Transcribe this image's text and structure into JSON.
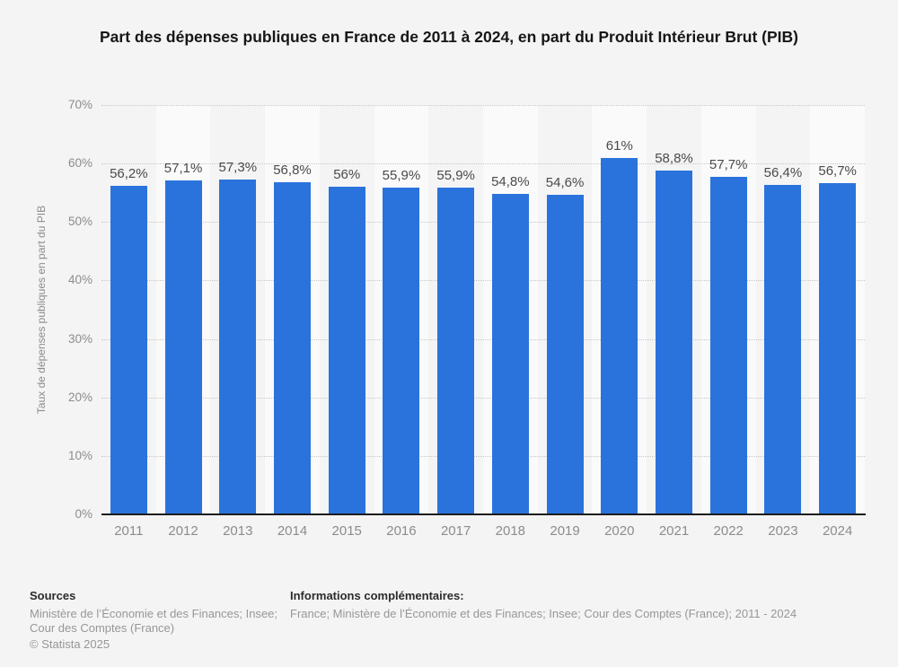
{
  "title": "Part des dépenses publiques en France de 2011 à 2024, en part du Produit Intérieur Brut (PIB)",
  "chart_data": {
    "type": "bar",
    "categories": [
      "2011",
      "2012",
      "2013",
      "2014",
      "2015",
      "2016",
      "2017",
      "2018",
      "2019",
      "2020",
      "2021",
      "2022",
      "2023",
      "2024"
    ],
    "values": [
      56.2,
      57.1,
      57.3,
      56.8,
      56,
      55.9,
      55.9,
      54.8,
      54.6,
      61,
      58.8,
      57.7,
      56.4,
      56.7
    ],
    "value_labels": [
      "56,2%",
      "57,1%",
      "57,3%",
      "56,8%",
      "56%",
      "55,9%",
      "55,9%",
      "54,8%",
      "54,6%",
      "61%",
      "58,8%",
      "57,7%",
      "56,4%",
      "56,7%"
    ],
    "title": "Part des dépenses publiques en France de 2011 à 2024, en part du Produit Intérieur Brut (PIB)",
    "xlabel": "",
    "ylabel": "Taux de dépenses publiques en part du PIB",
    "ylim": [
      0,
      70
    ],
    "ytick_step": 10,
    "ytick_labels": [
      "0%",
      "10%",
      "20%",
      "30%",
      "40%",
      "50%",
      "60%",
      "70%"
    ],
    "grid": "horizontal-dotted",
    "legend": "none",
    "bar_color": "#2a73dc",
    "stripe_color_odd": "#f4f4f4",
    "stripe_color_even": "#fafafa"
  },
  "footer": {
    "sources_heading": "Sources",
    "sources_lines": [
      "Ministère de l’Économie et des Finances; Insee;",
      "Cour des Comptes (France)"
    ],
    "copyright": "© Statista 2025",
    "info_heading": "Informations complémentaires:",
    "info_text": "France; Ministère de l’Économie et des Finances; Insee; Cour des Comptes (France); 2011 - 2024"
  }
}
